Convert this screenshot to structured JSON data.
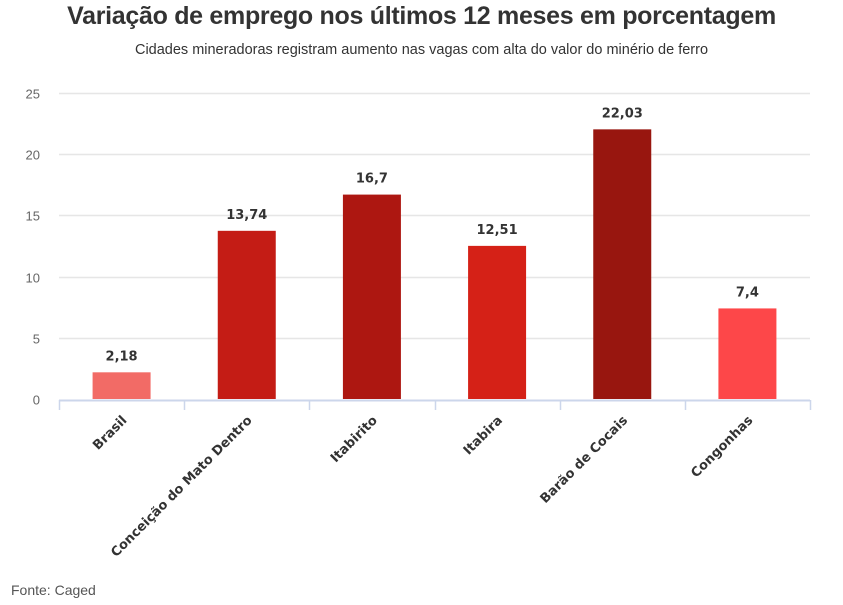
{
  "chart_data": {
    "type": "bar",
    "title": "Variação de emprego nos últimos 12 meses em porcentagem",
    "subtitle": "Cidades mineradoras registram aumento nas vagas com alta do valor do minério de ferro",
    "xlabel": "",
    "ylabel": "",
    "ylim": [
      0,
      25
    ],
    "yticks": [
      0,
      5,
      10,
      15,
      20,
      25
    ],
    "grid": true,
    "legend": "none",
    "categories": [
      "Brasil",
      "Conceição do Mato Dentro",
      "Itabirito",
      "Itabira",
      "Barão de Cocais",
      "Congonhas"
    ],
    "values": [
      2.18,
      13.74,
      16.7,
      12.51,
      22.03,
      7.4
    ],
    "value_labels": [
      "2,18",
      "13,74",
      "16,7",
      "12,51",
      "22,03",
      "7,4"
    ],
    "colors": [
      "#f26b66",
      "#c41c15",
      "#ad1711",
      "#d52117",
      "#98160f",
      "#fd4749"
    ],
    "source": "Fonte: Caged"
  },
  "colors": {
    "grid": "#e6e6e6",
    "axis": "#ccd6eb",
    "text": "#333333"
  }
}
